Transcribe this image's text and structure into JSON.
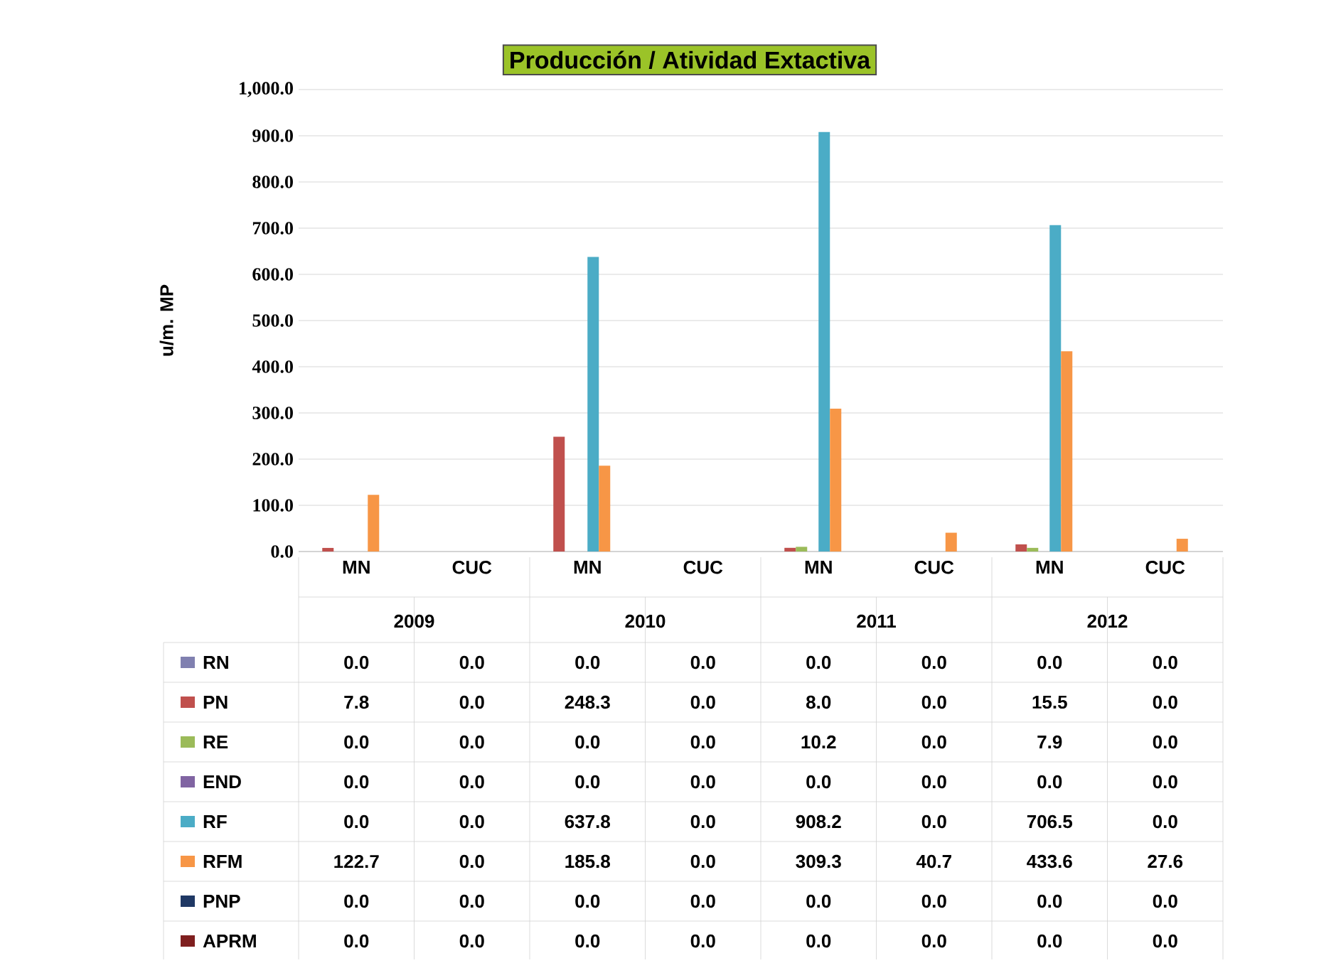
{
  "chart_data": {
    "type": "bar",
    "title": "Producción / Atividad Extactiva",
    "ylabel": "u/m. MP",
    "categories": [
      "MN",
      "CUC",
      "MN",
      "CUC",
      "MN",
      "CUC",
      "MN",
      "CUC"
    ],
    "annotations": [
      "2009",
      "2010",
      "2011",
      "2012"
    ],
    "series": [
      {
        "name": "RN",
        "color": "#8080b0",
        "values": [
          0,
          0,
          0,
          0,
          0,
          0,
          0,
          0
        ],
        "value_labels": [
          "0.0",
          "0.0",
          "0.0",
          "0.0",
          "0.0",
          "0.0",
          "0.0",
          "0.0"
        ]
      },
      {
        "name": "PN",
        "color": "#c0504d",
        "values": [
          7.8,
          0,
          248.3,
          0,
          8.0,
          0,
          15.5,
          0
        ],
        "value_labels": [
          "7.8",
          "0.0",
          "248.3",
          "0.0",
          "8.0",
          "0.0",
          "15.5",
          "0.0"
        ]
      },
      {
        "name": "RE",
        "color": "#9bbb59",
        "values": [
          0,
          0,
          0,
          0,
          10.2,
          0,
          7.9,
          0
        ],
        "value_labels": [
          "0.0",
          "0.0",
          "0.0",
          "0.0",
          "10.2",
          "0.0",
          "7.9",
          "0.0"
        ]
      },
      {
        "name": "END",
        "color": "#8064a2",
        "values": [
          0,
          0,
          0,
          0,
          0,
          0,
          0,
          0
        ],
        "value_labels": [
          "0.0",
          "0.0",
          "0.0",
          "0.0",
          "0.0",
          "0.0",
          "0.0",
          "0.0"
        ]
      },
      {
        "name": "RF",
        "color": "#4bacc6",
        "values": [
          0,
          0,
          637.8,
          0,
          908.2,
          0,
          706.5,
          0
        ],
        "value_labels": [
          "0.0",
          "0.0",
          "637.8",
          "0.0",
          "908.2",
          "0.0",
          "706.5",
          "0.0"
        ]
      },
      {
        "name": "RFM",
        "color": "#f79646",
        "values": [
          122.7,
          0,
          185.8,
          0,
          309.3,
          40.7,
          433.6,
          27.6
        ],
        "value_labels": [
          "122.7",
          "0.0",
          "185.8",
          "0.0",
          "309.3",
          "40.7",
          "433.6",
          "27.6"
        ]
      },
      {
        "name": "PNP",
        "color": "#1f3864",
        "values": [
          0,
          0,
          0,
          0,
          0,
          0,
          0,
          0
        ],
        "value_labels": [
          "0.0",
          "0.0",
          "0.0",
          "0.0",
          "0.0",
          "0.0",
          "0.0",
          "0.0"
        ]
      },
      {
        "name": "APRM",
        "color": "#7f1f1f",
        "values": [
          0,
          0,
          0,
          0,
          0,
          0,
          0,
          0
        ],
        "value_labels": [
          "0.0",
          "0.0",
          "0.0",
          "0.0",
          "0.0",
          "0.0",
          "0.0",
          "0.0"
        ]
      }
    ],
    "ylim": [
      0,
      1000
    ],
    "yticks": [
      {
        "value": 0,
        "label": "0.0"
      },
      {
        "value": 100,
        "label": "100.0"
      },
      {
        "value": 200,
        "label": "200.0"
      },
      {
        "value": 300,
        "label": "300.0"
      },
      {
        "value": 400,
        "label": "400.0"
      },
      {
        "value": 500,
        "label": "500.0"
      },
      {
        "value": 600,
        "label": "600.0"
      },
      {
        "value": 700,
        "label": "700.0"
      },
      {
        "value": 800,
        "label": "800.0"
      },
      {
        "value": 900,
        "label": "900.0"
      },
      {
        "value": 1000,
        "label": "1,000.0"
      }
    ],
    "grid": "y",
    "legend": "bottom"
  }
}
